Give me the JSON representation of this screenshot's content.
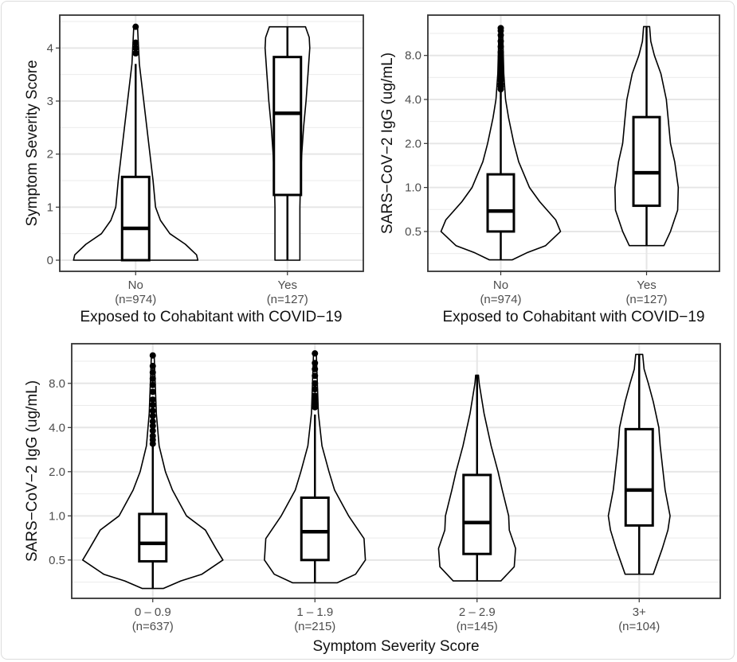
{
  "chart_data": [
    {
      "type": "violin-box",
      "xlabel": "Exposed to Cohabitant with COVID−19",
      "ylabel": "Symptom Severity Score",
      "yscale": "linear",
      "ylim": [
        -0.21,
        4.62
      ],
      "yticks": [
        0,
        1,
        2,
        3,
        4
      ],
      "ytick_labels": [
        "0",
        "1",
        "2",
        "3",
        "4"
      ],
      "grid": true,
      "categories": [
        "No",
        "Yes"
      ],
      "category_counts": [
        "(n=974)",
        "(n=127)"
      ],
      "groups": [
        {
          "min": 0,
          "q1": 0,
          "median": 0.6,
          "q3": 1.57,
          "whisker_high": 3.7,
          "max": 4.4,
          "outliers": [
            3.9,
            4.0,
            4.1,
            4.4
          ],
          "violin": [
            [
              0,
              1.0
            ],
            [
              0.1,
              0.98
            ],
            [
              0.3,
              0.8
            ],
            [
              0.5,
              0.55
            ],
            [
              0.75,
              0.4
            ],
            [
              1.0,
              0.32
            ],
            [
              1.5,
              0.28
            ],
            [
              2.0,
              0.23
            ],
            [
              2.5,
              0.18
            ],
            [
              3.0,
              0.13
            ],
            [
              3.7,
              0.06
            ],
            [
              4.4,
              0.03
            ]
          ]
        },
        {
          "min": 0,
          "q1": 1.23,
          "median": 2.77,
          "q3": 3.83,
          "whisker_high": 4.4,
          "max": 4.4,
          "outliers": [],
          "violin": [
            [
              0,
              0.2
            ],
            [
              0.5,
              0.2
            ],
            [
              1.0,
              0.2
            ],
            [
              1.5,
              0.21
            ],
            [
              2.0,
              0.23
            ],
            [
              2.5,
              0.26
            ],
            [
              3.0,
              0.3
            ],
            [
              3.5,
              0.33
            ],
            [
              4.0,
              0.36
            ],
            [
              4.2,
              0.35
            ],
            [
              4.4,
              0.29
            ]
          ]
        }
      ]
    },
    {
      "type": "violin-box",
      "xlabel": "Exposed to Cohabitant with COVID−19",
      "ylabel": "SARS−CoV−2 IgG (ug/mL)",
      "yscale": "log2",
      "ylim": [
        0.267,
        15.1
      ],
      "yticks": [
        0.5,
        1,
        2,
        4,
        8
      ],
      "ytick_labels": [
        "0.5",
        "1.0",
        "2.0",
        "4.0",
        "8.0"
      ],
      "grid": true,
      "categories": [
        "No",
        "Yes"
      ],
      "category_counts": [
        "(n=974)",
        "(n=127)"
      ],
      "groups": [
        {
          "min": 0.32,
          "q1": 0.5,
          "median": 0.69,
          "q3": 1.23,
          "whisker_high": 4.6,
          "max": 12.3,
          "outliers": [
            4.7,
            4.9,
            5.1,
            5.4,
            5.7,
            6.0,
            6.4,
            6.8,
            7.3,
            7.8,
            8.4,
            9.2,
            10.0,
            11.0,
            11.8,
            12.3
          ],
          "violin": [
            [
              0.32,
              0.19
            ],
            [
              0.36,
              0.45
            ],
            [
              0.4,
              0.75
            ],
            [
              0.5,
              1.0
            ],
            [
              0.6,
              0.92
            ],
            [
              0.8,
              0.65
            ],
            [
              1.0,
              0.48
            ],
            [
              1.5,
              0.3
            ],
            [
              2.0,
              0.22
            ],
            [
              3.0,
              0.13
            ],
            [
              4.0,
              0.08
            ],
            [
              6.0,
              0.05
            ],
            [
              12.3,
              0.03
            ]
          ]
        },
        {
          "min": 0.4,
          "q1": 0.75,
          "median": 1.26,
          "q3": 3.03,
          "whisker_high": 12.6,
          "max": 12.6,
          "outliers": [],
          "violin": [
            [
              0.4,
              0.29
            ],
            [
              0.5,
              0.4
            ],
            [
              0.7,
              0.52
            ],
            [
              1.0,
              0.53
            ],
            [
              1.5,
              0.47
            ],
            [
              2.0,
              0.4
            ],
            [
              3.0,
              0.36
            ],
            [
              4.0,
              0.33
            ],
            [
              6.0,
              0.24
            ],
            [
              8.0,
              0.13
            ],
            [
              10.0,
              0.07
            ],
            [
              12.6,
              0.05
            ]
          ]
        }
      ]
    },
    {
      "type": "violin-box",
      "xlabel": "Symptom Severity Score",
      "ylabel": "SARS−CoV−2 IgG (ug/mL)",
      "yscale": "log2",
      "ylim": [
        0.274,
        14.9
      ],
      "yticks": [
        0.5,
        1,
        2,
        4,
        8
      ],
      "ytick_labels": [
        "0.5",
        "1.0",
        "2.0",
        "4.0",
        "8.0"
      ],
      "grid": true,
      "categories": [
        "0 – 0.9",
        "1 – 1.9",
        "2 – 2.9",
        "3+"
      ],
      "category_counts": [
        "(n=637)",
        "(n=215)",
        "(n=145)",
        "(n=104)"
      ],
      "groups": [
        {
          "min": 0.32,
          "q1": 0.49,
          "median": 0.65,
          "q3": 1.03,
          "whisker_high": 3.0,
          "max": 12.4,
          "outliers": [
            3.1,
            3.3,
            3.5,
            3.8,
            4.1,
            4.4,
            4.8,
            5.2,
            5.7,
            6.2,
            7.0,
            7.8,
            8.6,
            9.5,
            10.5,
            12.4
          ],
          "violin": [
            [
              0.32,
              0.15
            ],
            [
              0.36,
              0.4
            ],
            [
              0.4,
              0.7
            ],
            [
              0.5,
              1.0
            ],
            [
              0.6,
              0.9
            ],
            [
              0.8,
              0.75
            ],
            [
              1.0,
              0.48
            ],
            [
              1.5,
              0.28
            ],
            [
              2.0,
              0.18
            ],
            [
              3.0,
              0.09
            ],
            [
              5.0,
              0.05
            ],
            [
              12.4,
              0.02
            ]
          ]
        },
        {
          "min": 0.35,
          "q1": 0.5,
          "median": 0.78,
          "q3": 1.33,
          "whisker_high": 4.9,
          "max": 12.8,
          "outliers": [
            5.5,
            5.8,
            6.2,
            6.6,
            7.3,
            8.0,
            9.0,
            10.0,
            11.0,
            12.8
          ],
          "violin": [
            [
              0.35,
              0.32
            ],
            [
              0.4,
              0.58
            ],
            [
              0.5,
              0.72
            ],
            [
              0.7,
              0.7
            ],
            [
              1.0,
              0.48
            ],
            [
              1.5,
              0.28
            ],
            [
              2.0,
              0.2
            ],
            [
              3.0,
              0.1
            ],
            [
              5.0,
              0.05
            ],
            [
              12.8,
              0.02
            ]
          ]
        },
        {
          "min": 0.36,
          "q1": 0.55,
          "median": 0.9,
          "q3": 1.9,
          "whisker_high": 9.1,
          "max": 9.1,
          "outliers": [],
          "violin": [
            [
              0.36,
              0.34
            ],
            [
              0.45,
              0.53
            ],
            [
              0.6,
              0.55
            ],
            [
              0.8,
              0.46
            ],
            [
              1.0,
              0.45
            ],
            [
              1.5,
              0.36
            ],
            [
              2.0,
              0.3
            ],
            [
              3.0,
              0.2
            ],
            [
              5.0,
              0.1
            ],
            [
              8.0,
              0.03
            ],
            [
              9.1,
              0.02
            ]
          ]
        },
        {
          "min": 0.4,
          "q1": 0.86,
          "median": 1.5,
          "q3": 3.9,
          "whisker_high": 12.6,
          "max": 12.6,
          "outliers": [],
          "violin": [
            [
              0.4,
              0.2
            ],
            [
              0.6,
              0.33
            ],
            [
              0.8,
              0.41
            ],
            [
              1.0,
              0.44
            ],
            [
              1.5,
              0.37
            ],
            [
              2.0,
              0.34
            ],
            [
              3.0,
              0.3
            ],
            [
              4.0,
              0.28
            ],
            [
              6.0,
              0.2
            ],
            [
              8.0,
              0.13
            ],
            [
              10.0,
              0.07
            ],
            [
              12.6,
              0.05
            ]
          ]
        }
      ]
    }
  ]
}
